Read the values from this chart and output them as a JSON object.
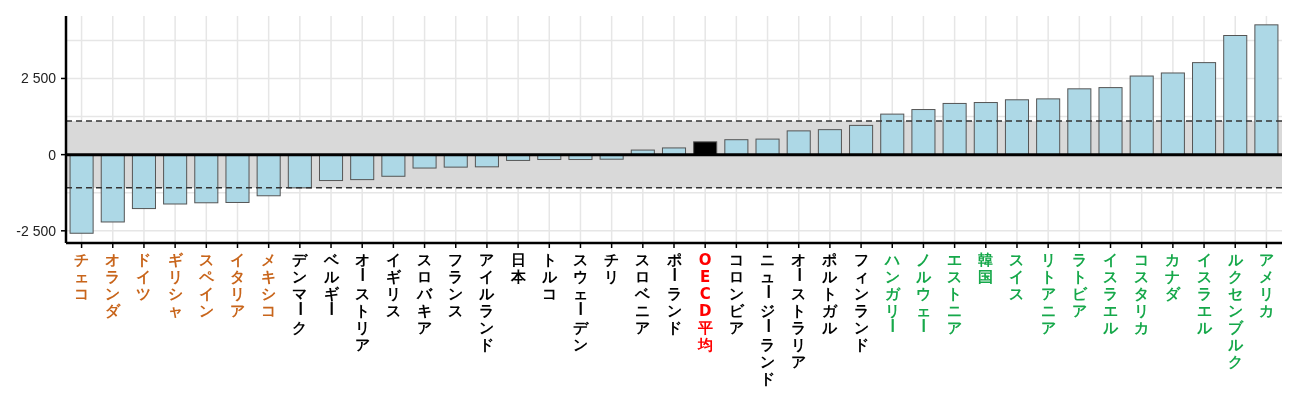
{
  "chart_data": {
    "type": "bar",
    "categories": [
      "チェコ",
      "オランダ",
      "ドイツ",
      "ギリシャ",
      "スペイン",
      "イタリア",
      "メキシコ",
      "デンマーク",
      "ベルギー",
      "オーストリア",
      "イギリス",
      "スロバキア",
      "フランス",
      "アイルランド",
      "日本",
      "トルコ",
      "スウェーデン",
      "チリ",
      "スロベニア",
      "ポーランド",
      "OECD平均",
      "コロンビア",
      "ニュージーランド",
      "オーストラリア",
      "ポルトガル",
      "フィンランド",
      "ハンガリー",
      "ノルウェー",
      "エストニア",
      "韓国",
      "スイス",
      "リトアニア",
      "ラトビア",
      "イスラエル",
      "コスタリカ",
      "カナダ",
      "イスラエル",
      "ルクセンブルク",
      "アメリカ"
    ],
    "values": [
      -2580,
      -2210,
      -1770,
      -1620,
      -1580,
      -1570,
      -1350,
      -1090,
      -850,
      -820,
      -710,
      -440,
      -410,
      -400,
      -190,
      -160,
      -160,
      -150,
      150,
      220,
      420,
      490,
      510,
      780,
      820,
      960,
      1330,
      1480,
      1680,
      1710,
      1800,
      1830,
      2160,
      2200,
      2580,
      2680,
      3020,
      3910,
      4260
    ],
    "colors": [
      "#add8e6",
      "#add8e6",
      "#add8e6",
      "#add8e6",
      "#add8e6",
      "#add8e6",
      "#add8e6",
      "#add8e6",
      "#add8e6",
      "#add8e6",
      "#add8e6",
      "#add8e6",
      "#add8e6",
      "#add8e6",
      "#add8e6",
      "#add8e6",
      "#add8e6",
      "#add8e6",
      "#add8e6",
      "#add8e6",
      "#000000",
      "#add8e6",
      "#add8e6",
      "#add8e6",
      "#add8e6",
      "#add8e6",
      "#add8e6",
      "#add8e6",
      "#add8e6",
      "#add8e6",
      "#add8e6",
      "#add8e6",
      "#add8e6",
      "#add8e6",
      "#add8e6",
      "#add8e6",
      "#add8e6",
      "#add8e6",
      "#add8e6"
    ],
    "ylim": [
      -2900,
      4550
    ],
    "yticks": [
      {
        "value": -2500,
        "label": "-2 500"
      },
      {
        "value": -1250,
        "label": null
      },
      {
        "value": 0,
        "label": "0"
      },
      {
        "value": 1250,
        "label": null
      },
      {
        "value": 2500,
        "label": "2 500"
      },
      {
        "value": 3750,
        "label": null
      }
    ],
    "grid": true,
    "bands": [
      {
        "axis": "y",
        "from": -1090,
        "to": 1100,
        "color": "#d9d9d9"
      }
    ],
    "ref_lines": [
      {
        "axis": "y",
        "value": 1100,
        "line_style": "dashed",
        "color": "#333333"
      },
      {
        "axis": "y",
        "value": -1090,
        "line_style": "dashed",
        "color": "#333333"
      }
    ]
  }
}
